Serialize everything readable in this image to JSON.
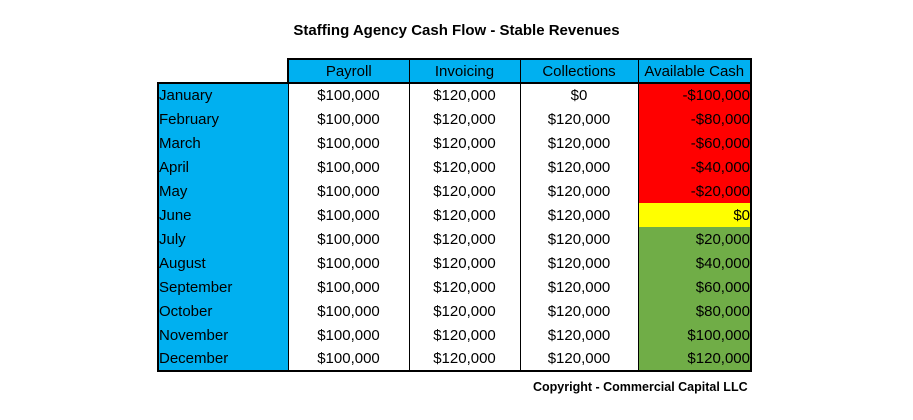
{
  "chart_data": {
    "type": "table",
    "title": "Staffing Agency Cash Flow - Stable Revenues",
    "columns": [
      "Payroll",
      "Invoicing",
      "Collections",
      "Available Cash"
    ],
    "rows": [
      {
        "month": "January",
        "payroll": "$100,000",
        "invoicing": "$120,000",
        "collections": "$0",
        "cash": "-$100,000",
        "status": "negative"
      },
      {
        "month": "February",
        "payroll": "$100,000",
        "invoicing": "$120,000",
        "collections": "$120,000",
        "cash": "-$80,000",
        "status": "negative"
      },
      {
        "month": "March",
        "payroll": "$100,000",
        "invoicing": "$120,000",
        "collections": "$120,000",
        "cash": "-$60,000",
        "status": "negative"
      },
      {
        "month": "April",
        "payroll": "$100,000",
        "invoicing": "$120,000",
        "collections": "$120,000",
        "cash": "-$40,000",
        "status": "negative"
      },
      {
        "month": "May",
        "payroll": "$100,000",
        "invoicing": "$120,000",
        "collections": "$120,000",
        "cash": "-$20,000",
        "status": "negative"
      },
      {
        "month": "June",
        "payroll": "$100,000",
        "invoicing": "$120,000",
        "collections": "$120,000",
        "cash": "$0",
        "status": "zero"
      },
      {
        "month": "July",
        "payroll": "$100,000",
        "invoicing": "$120,000",
        "collections": "$120,000",
        "cash": "$20,000",
        "status": "positive"
      },
      {
        "month": "August",
        "payroll": "$100,000",
        "invoicing": "$120,000",
        "collections": "$120,000",
        "cash": "$40,000",
        "status": "positive"
      },
      {
        "month": "September",
        "payroll": "$100,000",
        "invoicing": "$120,000",
        "collections": "$120,000",
        "cash": "$60,000",
        "status": "positive"
      },
      {
        "month": "October",
        "payroll": "$100,000",
        "invoicing": "$120,000",
        "collections": "$120,000",
        "cash": "$80,000",
        "status": "positive"
      },
      {
        "month": "November",
        "payroll": "$100,000",
        "invoicing": "$120,000",
        "collections": "$120,000",
        "cash": "$100,000",
        "status": "positive"
      },
      {
        "month": "December",
        "payroll": "$100,000",
        "invoicing": "$120,000",
        "collections": "$120,000",
        "cash": "$120,000",
        "status": "positive"
      }
    ],
    "colors": {
      "header": "#00b0f0",
      "month_column": "#00b0f0",
      "negative": "#ff0000",
      "zero": "#ffff00",
      "positive": "#70ad47"
    }
  },
  "footer": "Copyright - Commercial Capital LLC"
}
